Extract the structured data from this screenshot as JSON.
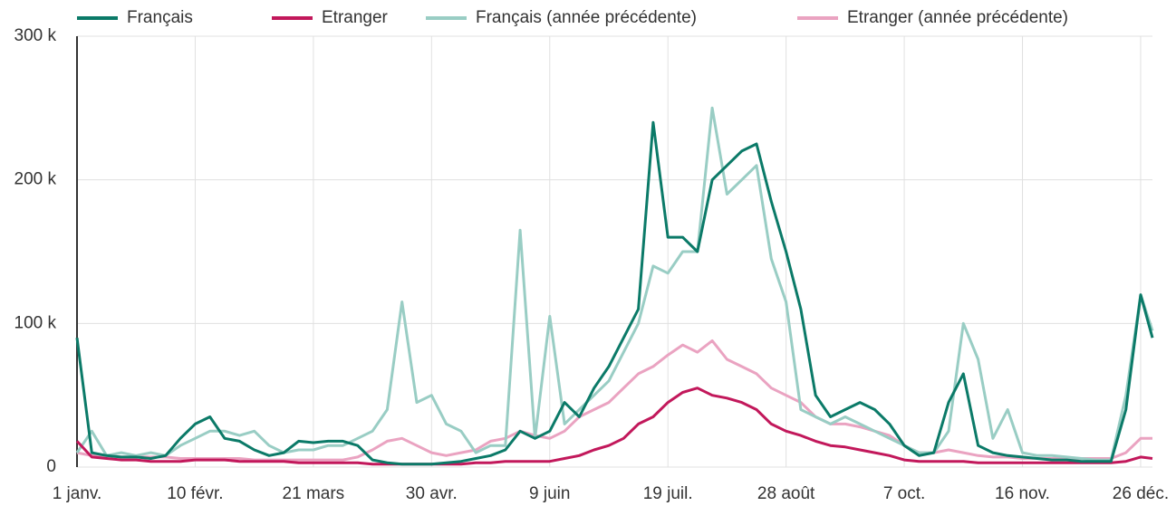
{
  "chart_data": {
    "type": "line",
    "x": [
      0,
      5,
      10,
      15,
      20,
      25,
      30,
      35,
      40,
      45,
      50,
      55,
      60,
      65,
      70,
      75,
      80,
      85,
      90,
      95,
      100,
      105,
      110,
      115,
      120,
      125,
      130,
      135,
      140,
      145,
      150,
      155,
      160,
      165,
      170,
      175,
      180,
      185,
      190,
      195,
      200,
      205,
      210,
      215,
      220,
      225,
      230,
      235,
      240,
      245,
      250,
      255,
      260,
      265,
      270,
      275,
      280,
      285,
      290,
      295,
      300,
      305,
      310,
      315,
      320,
      325,
      330,
      335,
      340,
      345,
      350,
      355,
      360,
      364
    ],
    "xlim": [
      0,
      364
    ],
    "xticks": [
      {
        "value": 0,
        "label": "1 janv."
      },
      {
        "value": 40,
        "label": "10 févr."
      },
      {
        "value": 80,
        "label": "21 mars"
      },
      {
        "value": 120,
        "label": "30 avr."
      },
      {
        "value": 160,
        "label": "9 juin"
      },
      {
        "value": 200,
        "label": "19 juil."
      },
      {
        "value": 240,
        "label": "28 août"
      },
      {
        "value": 280,
        "label": "7 oct."
      },
      {
        "value": 320,
        "label": "16 nov."
      },
      {
        "value": 360,
        "label": "26 déc."
      }
    ],
    "ylim": [
      0,
      300000
    ],
    "yticks": [
      0,
      {
        "value": 100000,
        "label": "100 k"
      },
      {
        "value": 200000,
        "label": "200 k"
      },
      {
        "value": 300000,
        "label": "300 k"
      }
    ],
    "grid": true,
    "legend": "top",
    "series": [
      {
        "name": "Français",
        "color": "#0b7a68",
        "values": [
          90000,
          10000,
          8000,
          7000,
          7000,
          6000,
          8000,
          20000,
          30000,
          35000,
          20000,
          18000,
          12000,
          8000,
          10000,
          18000,
          17000,
          18000,
          18000,
          15000,
          5000,
          3000,
          2000,
          2000,
          2000,
          3000,
          4000,
          6000,
          8000,
          12000,
          25000,
          20000,
          25000,
          45000,
          35000,
          55000,
          70000,
          90000,
          110000,
          240000,
          160000,
          160000,
          150000,
          200000,
          210000,
          220000,
          225000,
          185000,
          150000,
          110000,
          50000,
          35000,
          40000,
          45000,
          40000,
          30000,
          15000,
          8000,
          10000,
          45000,
          65000,
          15000,
          10000,
          8000,
          7000,
          6000,
          5000,
          5000,
          4000,
          4000,
          4000,
          40000,
          120000,
          90000
        ]
      },
      {
        "name": "Etranger",
        "color": "#c2185b",
        "values": [
          18000,
          7000,
          6000,
          5000,
          5000,
          4000,
          4000,
          4000,
          5000,
          5000,
          5000,
          4000,
          4000,
          4000,
          4000,
          3000,
          3000,
          3000,
          3000,
          3000,
          2000,
          2000,
          2000,
          2000,
          2000,
          2000,
          2000,
          3000,
          3000,
          4000,
          4000,
          4000,
          4000,
          6000,
          8000,
          12000,
          15000,
          20000,
          30000,
          35000,
          45000,
          52000,
          55000,
          50000,
          48000,
          45000,
          40000,
          30000,
          25000,
          22000,
          18000,
          15000,
          14000,
          12000,
          10000,
          8000,
          5000,
          4000,
          4000,
          4000,
          4000,
          3000,
          3000,
          3000,
          3000,
          3000,
          3000,
          3000,
          3000,
          3000,
          3000,
          4000,
          7000,
          6000
        ]
      },
      {
        "name": "Français (année précédente)",
        "color": "#99cdc4",
        "values": [
          10000,
          25000,
          8000,
          10000,
          8000,
          10000,
          8000,
          15000,
          20000,
          25000,
          25000,
          22000,
          25000,
          15000,
          10000,
          12000,
          12000,
          15000,
          15000,
          20000,
          25000,
          40000,
          115000,
          45000,
          50000,
          30000,
          25000,
          10000,
          15000,
          15000,
          165000,
          20000,
          105000,
          30000,
          40000,
          50000,
          60000,
          80000,
          100000,
          140000,
          135000,
          150000,
          150000,
          250000,
          190000,
          200000,
          210000,
          145000,
          115000,
          40000,
          35000,
          30000,
          35000,
          30000,
          25000,
          20000,
          15000,
          10000,
          10000,
          25000,
          100000,
          75000,
          20000,
          40000,
          10000,
          8000,
          8000,
          7000,
          6000,
          5000,
          5000,
          50000,
          120000,
          95000
        ]
      },
      {
        "name": "Etranger (année précédente)",
        "color": "#eaa3c1",
        "values": [
          10000,
          8000,
          8000,
          7000,
          7000,
          7000,
          7000,
          6000,
          6000,
          6000,
          6000,
          6000,
          5000,
          5000,
          5000,
          5000,
          5000,
          5000,
          5000,
          7000,
          12000,
          18000,
          20000,
          15000,
          10000,
          8000,
          10000,
          12000,
          18000,
          20000,
          25000,
          22000,
          20000,
          25000,
          35000,
          40000,
          45000,
          55000,
          65000,
          70000,
          78000,
          85000,
          80000,
          88000,
          75000,
          70000,
          65000,
          55000,
          50000,
          45000,
          35000,
          30000,
          30000,
          28000,
          25000,
          22000,
          15000,
          10000,
          10000,
          12000,
          10000,
          8000,
          7000,
          7000,
          6000,
          6000,
          6000,
          6000,
          6000,
          6000,
          6000,
          10000,
          20000,
          20000
        ]
      }
    ]
  }
}
